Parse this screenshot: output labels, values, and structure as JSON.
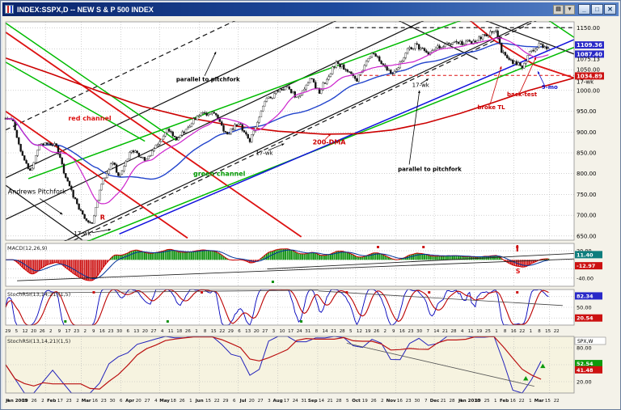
{
  "window": {
    "title": "INDEX:SSPX,D -- NEW S & P 500 INDEX",
    "toolbar_buttons": [
      {
        "glyph": "▤"
      },
      {
        "glyph": "▾"
      }
    ],
    "controls": {
      "minimize": "_",
      "maximize": "□",
      "close": "✕"
    }
  },
  "colors": {
    "up": "#ffffff",
    "down": "#111111",
    "ma20": "#cc22cc",
    "ma50": "#2244cc",
    "dma200": "#cc0000",
    "grid": "#b5b5b5",
    "panel_bg": "#ffffff",
    "weekly_bg": "#f6f3e0",
    "frame": "#8f8f8f",
    "badge_blue": "#2929c8",
    "badge_red": "#cc1111",
    "badge_teal": "#0e7d7d",
    "badge_green": "#0c9a0c"
  },
  "chart_data": [
    {
      "id": "price",
      "type": "candlestick",
      "title": "NEW S & P 500 INDEX",
      "symbol": "INDEX:SSPX",
      "interval": "D",
      "x_range": [
        "Jan 2009",
        "Mar 2010"
      ],
      "y_range": [
        640,
        1165
      ],
      "y_gridlines": [
        650,
        700,
        750,
        800,
        850,
        900,
        950,
        1000,
        1050,
        1100,
        1150
      ],
      "price_labels": [
        {
          "v": 1150,
          "text": "1150.00",
          "style": "plain"
        },
        {
          "v": 1109.36,
          "text": "1109.36",
          "style": "badge_blue"
        },
        {
          "v": 1087.4,
          "text": "1087.40",
          "style": "badge_blue"
        },
        {
          "v": 1075.13,
          "text": "1075.13",
          "style": "plain"
        },
        {
          "v": 1050,
          "text": "1050.00",
          "style": "plain"
        },
        {
          "v": 1034.89,
          "text": "1034.89",
          "style": "badge_red"
        },
        {
          "v": 1000,
          "text": "1000.00",
          "style": "plain"
        },
        {
          "v": 950,
          "text": "950.00",
          "style": "plain"
        },
        {
          "v": 900,
          "text": "900.00",
          "style": "plain"
        },
        {
          "v": 850,
          "text": "850.00",
          "style": "plain"
        },
        {
          "v": 800,
          "text": "800.00",
          "style": "plain"
        },
        {
          "v": 750,
          "text": "750.00",
          "style": "plain"
        },
        {
          "v": 700,
          "text": "700.00",
          "style": "plain"
        },
        {
          "v": 650,
          "text": "650.00",
          "style": "plain"
        }
      ],
      "month_fracs": [
        0.07,
        0.133,
        0.203,
        0.271,
        0.341,
        0.409,
        0.479,
        0.549,
        0.616,
        0.686,
        0.754,
        0.824,
        0.894,
        0.957
      ],
      "close_anchors": [
        [
          0.002,
          931
        ],
        [
          0.011,
          934
        ],
        [
          0.029,
          843
        ],
        [
          0.043,
          805
        ],
        [
          0.061,
          874
        ],
        [
          0.088,
          869
        ],
        [
          0.106,
          789
        ],
        [
          0.12,
          743
        ],
        [
          0.135,
          700
        ],
        [
          0.151,
          677
        ],
        [
          0.169,
          778
        ],
        [
          0.19,
          832
        ],
        [
          0.199,
          787
        ],
        [
          0.221,
          857
        ],
        [
          0.246,
          832
        ],
        [
          0.269,
          873
        ],
        [
          0.284,
          907
        ],
        [
          0.302,
          883
        ],
        [
          0.314,
          903
        ],
        [
          0.341,
          943
        ],
        [
          0.366,
          946
        ],
        [
          0.388,
          893
        ],
        [
          0.409,
          923
        ],
        [
          0.429,
          879
        ],
        [
          0.458,
          976
        ],
        [
          0.492,
          1010
        ],
        [
          0.515,
          980
        ],
        [
          0.537,
          1031
        ],
        [
          0.551,
          995
        ],
        [
          0.582,
          1068
        ],
        [
          0.603,
          1044
        ],
        [
          0.618,
          1025
        ],
        [
          0.645,
          1092
        ],
        [
          0.682,
          1036
        ],
        [
          0.704,
          1093
        ],
        [
          0.72,
          1109
        ],
        [
          0.745,
          1091
        ],
        [
          0.761,
          1106
        ],
        [
          0.783,
          1114
        ],
        [
          0.822,
          1115
        ],
        [
          0.864,
          1150
        ],
        [
          0.871,
          1092
        ],
        [
          0.887,
          1074
        ],
        [
          0.9,
          1063
        ],
        [
          0.909,
          1057
        ],
        [
          0.916,
          1078
        ],
        [
          0.934,
          1109
        ],
        [
          0.948,
          1103
        ],
        [
          0.955,
          1105
        ]
      ],
      "dma200_anchors": [
        [
          0,
          1078
        ],
        [
          0.08,
          1040
        ],
        [
          0.16,
          1000
        ],
        [
          0.24,
          962
        ],
        [
          0.32,
          935
        ],
        [
          0.4,
          915
        ],
        [
          0.48,
          902
        ],
        [
          0.56,
          895
        ],
        [
          0.62,
          896
        ],
        [
          0.68,
          905
        ],
        [
          0.74,
          922
        ],
        [
          0.8,
          945
        ],
        [
          0.86,
          972
        ],
        [
          0.92,
          1000
        ],
        [
          1.0,
          1030
        ]
      ],
      "trendlines": [
        {
          "pts": [
            [
              0.03,
              590
            ],
            [
              1.03,
              1235
            ]
          ],
          "c": "#111111",
          "w": 1.2
        },
        {
          "pts": [
            [
              0.0,
              690
            ],
            [
              1.0,
              1340
            ]
          ],
          "c": "#111111",
          "w": 1.2
        },
        {
          "pts": [
            [
              0.0,
              790
            ],
            [
              0.6,
              1180
            ]
          ],
          "c": "#111111",
          "w": 1.2
        },
        {
          "pts": [
            [
              0.0,
              772
            ],
            [
              0.135,
              640
            ]
          ],
          "c": "#111111",
          "w": 1.2
        },
        {
          "pts": [
            [
              0.55,
              1320
            ],
            [
              1.03,
              1072
            ]
          ],
          "c": "#111111",
          "w": 1.2
        },
        {
          "pts": [
            [
              0.45,
              1330
            ],
            [
              0.83,
              1075
            ]
          ],
          "c": "#111111",
          "w": 1.2
        },
        {
          "pts": [
            [
              0.0,
              905
            ],
            [
              0.43,
              1185
            ]
          ],
          "c": "#111111",
          "w": 1.2,
          "dash": "6 4"
        },
        {
          "pts": [
            [
              0.12,
              640
            ],
            [
              0.96,
              1185
            ]
          ],
          "c": "#111111",
          "w": 1.2,
          "dash": "6 4"
        },
        {
          "pts": [
            [
              0.58,
              1151
            ],
            [
              1.03,
              1151
            ]
          ],
          "c": "#111111",
          "w": 1.1,
          "dash": "5 4"
        },
        {
          "pts": [
            [
              0.0,
              1140
            ],
            [
              0.52,
              648
            ]
          ],
          "c": "#dd1111",
          "w": 1.8
        },
        {
          "pts": [
            [
              0.0,
              950
            ],
            [
              0.32,
              645
            ]
          ],
          "c": "#dd1111",
          "w": 1.8
        },
        {
          "pts": [
            [
              0.7,
              1320
            ],
            [
              0.78,
              1210
            ],
            [
              0.86,
              1120
            ],
            [
              0.93,
              1062
            ],
            [
              1.0,
              1030
            ]
          ],
          "c": "#dd1111",
          "w": 1.8
        },
        {
          "pts": [
            [
              0.62,
              1036
            ],
            [
              1.03,
              1036
            ]
          ],
          "c": "#dd1111",
          "w": 1,
          "dash": "4 3"
        },
        {
          "pts": [
            [
              0.14,
              635
            ],
            [
              1.03,
              1120
            ]
          ],
          "c": "#00bb00",
          "w": 1.5
        },
        {
          "pts": [
            [
              0.04,
              788
            ],
            [
              1.02,
              1278
            ]
          ],
          "c": "#00bb00",
          "w": 1.5
        },
        {
          "pts": [
            [
              0.0,
              1162
            ],
            [
              0.3,
              880
            ]
          ],
          "c": "#00bb00",
          "w": 1.5
        },
        {
          "pts": [
            [
              0.0,
              1068
            ],
            [
              0.245,
              878
            ]
          ],
          "c": "#00bb00",
          "w": 1.5
        },
        {
          "pts": [
            [
              0.79,
              1320
            ],
            [
              1.03,
              1100
            ]
          ],
          "c": "#00bb00",
          "w": 1.5
        },
        {
          "pts": [
            [
              0.2,
              655
            ],
            [
              1.03,
              1140
            ]
          ],
          "c": "#1111dd",
          "w": 1.5
        }
      ],
      "annotations": [
        {
          "text": "Andrews Pitchfork",
          "t": 0.004,
          "p": 752,
          "color": "#000000",
          "size": 8,
          "bold": false,
          "arrow": [
            0.06,
            740,
            0.1,
            702
          ]
        },
        {
          "text": "red channel",
          "t": 0.11,
          "p": 928,
          "color": "#dd1111",
          "size": 8,
          "bold": true
        },
        {
          "text": "green channel",
          "t": 0.33,
          "p": 795,
          "color": "#009900",
          "size": 8,
          "bold": true
        },
        {
          "text": "parallel to pitchfork",
          "t": 0.3,
          "p": 1022,
          "color": "#000000",
          "size": 7,
          "bold": true,
          "arrow": [
            0.35,
            1035,
            0.37,
            1093
          ]
        },
        {
          "text": "parallel to pitchfork",
          "t": 0.69,
          "p": 806,
          "color": "#000000",
          "size": 7,
          "bold": true,
          "arrow": [
            0.71,
            822,
            0.728,
            1000
          ]
        },
        {
          "text": "200-DMA",
          "t": 0.54,
          "p": 870,
          "color": "#cc0000",
          "size": 8,
          "bold": true,
          "arrow": [
            0.562,
            882,
            0.572,
            896
          ]
        },
        {
          "text": "17-wk",
          "t": 0.12,
          "p": 652,
          "color": "#000000",
          "size": 7,
          "bold": false,
          "arrow": [
            0.152,
            658,
            0.185,
            666
          ]
        },
        {
          "text": "17-wk",
          "t": 0.44,
          "p": 845,
          "color": "#000000",
          "size": 7,
          "bold": false,
          "arrow": [
            0.462,
            856,
            0.49,
            872
          ]
        },
        {
          "text": "17-wk",
          "t": 0.715,
          "p": 1008,
          "color": "#000000",
          "size": 7,
          "bold": false,
          "arrow": [
            0.73,
            1016,
            0.744,
            1028
          ]
        },
        {
          "text": "broke TL",
          "t": 0.83,
          "p": 955,
          "color": "#cc0000",
          "size": 7,
          "bold": true,
          "arrow": [
            0.852,
            966,
            0.872,
            1058
          ]
        },
        {
          "text": "back-test",
          "t": 0.882,
          "p": 986,
          "color": "#cc0000",
          "size": 7,
          "bold": true,
          "arrow": [
            0.905,
            996,
            0.933,
            1080
          ]
        },
        {
          "text": "9-mo",
          "t": 0.943,
          "p": 1004,
          "color": "#1111cc",
          "size": 7,
          "bold": true,
          "arrow": [
            0.948,
            1012,
            0.936,
            1046
          ]
        },
        {
          "text": "R",
          "t": 0.166,
          "p": 690,
          "color": "#cc0000",
          "size": 8,
          "bold": true
        }
      ],
      "margin_labels": [
        {
          "text": "17-wk",
          "p": 1016,
          "color": "#000000"
        }
      ]
    },
    {
      "id": "macd",
      "type": "bar",
      "label": "MACD(12,26,9)",
      "params": [
        12,
        26,
        9
      ],
      "y_range": [
        -58,
        36
      ],
      "gridlines": [
        20,
        0,
        -20,
        -40
      ],
      "axis_labels": [
        {
          "v": 20,
          "text": "20.00"
        },
        {
          "v": -40,
          "text": "-40.00"
        }
      ],
      "badges": [
        {
          "v": 11.4,
          "text": "11.40",
          "style": "badge_teal"
        },
        {
          "v": -13,
          "text": "-12.97",
          "style": "badge_red"
        }
      ],
      "trendlines": [
        {
          "pts": [
            [
              0.02,
              -46
            ],
            [
              1.0,
              2
            ]
          ],
          "c": "#222222",
          "w": 0.9
        },
        {
          "pts": [
            [
              0.46,
              -20
            ],
            [
              1.0,
              14
            ]
          ],
          "c": "#222222",
          "w": 0.9
        }
      ],
      "marks_red": [
        0.655,
        0.735,
        0.9
      ],
      "marks_green": [
        0.47
      ],
      "sell_label": {
        "text": "S",
        "t": 0.9,
        "v": -30,
        "color": "#dd1111"
      }
    },
    {
      "id": "stoch",
      "type": "line",
      "label": "StochRSI(13,14,21)(1,5)",
      "y_range": [
        0,
        100
      ],
      "gridlines": [
        80,
        50,
        20
      ],
      "axis_labels": [
        {
          "v": 80,
          "text": "80.00"
        },
        {
          "v": 50,
          "text": "50.00"
        },
        {
          "v": 20,
          "text": "20.00"
        }
      ],
      "badges": [
        {
          "v": 82,
          "text": "82.34",
          "style": "badge_blue"
        },
        {
          "v": 20,
          "text": "20.54",
          "style": "badge_red"
        }
      ],
      "trendlines": [
        {
          "pts": [
            [
              0.02,
              90
            ],
            [
              0.55,
              98
            ]
          ],
          "c": "#444444",
          "w": 0.8
        },
        {
          "pts": [
            [
              0.55,
              96
            ],
            [
              0.98,
              55
            ]
          ],
          "c": "#444444",
          "w": 0.8
        }
      ],
      "marks_red": [
        0.155,
        0.345,
        0.6,
        0.745,
        0.9
      ],
      "marks_green": [
        0.105,
        0.285,
        0.52
      ]
    },
    {
      "id": "weekly",
      "type": "line",
      "label": "StochRSI(13,14,21)(1,5)",
      "corner_label": "SPX,W",
      "y_range": [
        0,
        100
      ],
      "gridlines": [
        80,
        50,
        20
      ],
      "axis_labels": [
        {
          "v": 80,
          "text": "80.00"
        },
        {
          "v": 50,
          "text": "50.00"
        },
        {
          "v": 20,
          "text": "20.00"
        }
      ],
      "badges": [
        {
          "v": 52,
          "text": "52.54",
          "style": "badge_green"
        },
        {
          "v": 41,
          "text": "41.48",
          "style": "badge_red"
        }
      ],
      "trendlines": [
        {
          "pts": [
            [
              0.6,
              88
            ],
            [
              0.93,
              12
            ]
          ],
          "c": "#555555",
          "w": 0.8
        }
      ],
      "up_arrows": [
        {
          "t": 0.915,
          "v": 30
        },
        {
          "t": 0.945,
          "v": 52
        }
      ]
    }
  ],
  "date_axis_weekly": [
    "29",
    "5",
    "12",
    "20",
    "26",
    "2",
    "9",
    "17",
    "23",
    "2",
    "9",
    "16",
    "23",
    "30",
    "6",
    "13",
    "20",
    "27",
    "4",
    "11",
    "18",
    "26",
    "1",
    "8",
    "15",
    "22",
    "29",
    "6",
    "13",
    "20",
    "27",
    "3",
    "10",
    "17",
    "24",
    "31",
    "8",
    "14",
    "21",
    "28",
    "5",
    "12",
    "19",
    "26",
    "2",
    "9",
    "16",
    "23",
    "30",
    "7",
    "14",
    "21",
    "28",
    "4",
    "11",
    "19",
    "25",
    "1",
    "8",
    "16",
    "22",
    "1",
    "8",
    "15",
    "22"
  ],
  "date_axis_monthly": [
    "4",
    "Jan 2009",
    "19",
    "26",
    "2",
    "Feb",
    "17",
    "23",
    "2",
    "Mar",
    "16",
    "23",
    "30",
    "6",
    "Apr",
    "20",
    "27",
    "4",
    "May",
    "18",
    "26",
    "1",
    "Jun",
    "15",
    "22",
    "29",
    "6",
    "Jul",
    "20",
    "27",
    "3",
    "Aug",
    "17",
    "24",
    "31",
    "Sep",
    "14",
    "21",
    "28",
    "5",
    "Oct",
    "19",
    "26",
    "2",
    "Nov",
    "16",
    "23",
    "30",
    "7",
    "Dec",
    "21",
    "28",
    "4",
    "Jan 2010",
    "19",
    "25",
    "1",
    "Feb",
    "16",
    "22",
    "1",
    "Mar",
    "15",
    "22"
  ]
}
